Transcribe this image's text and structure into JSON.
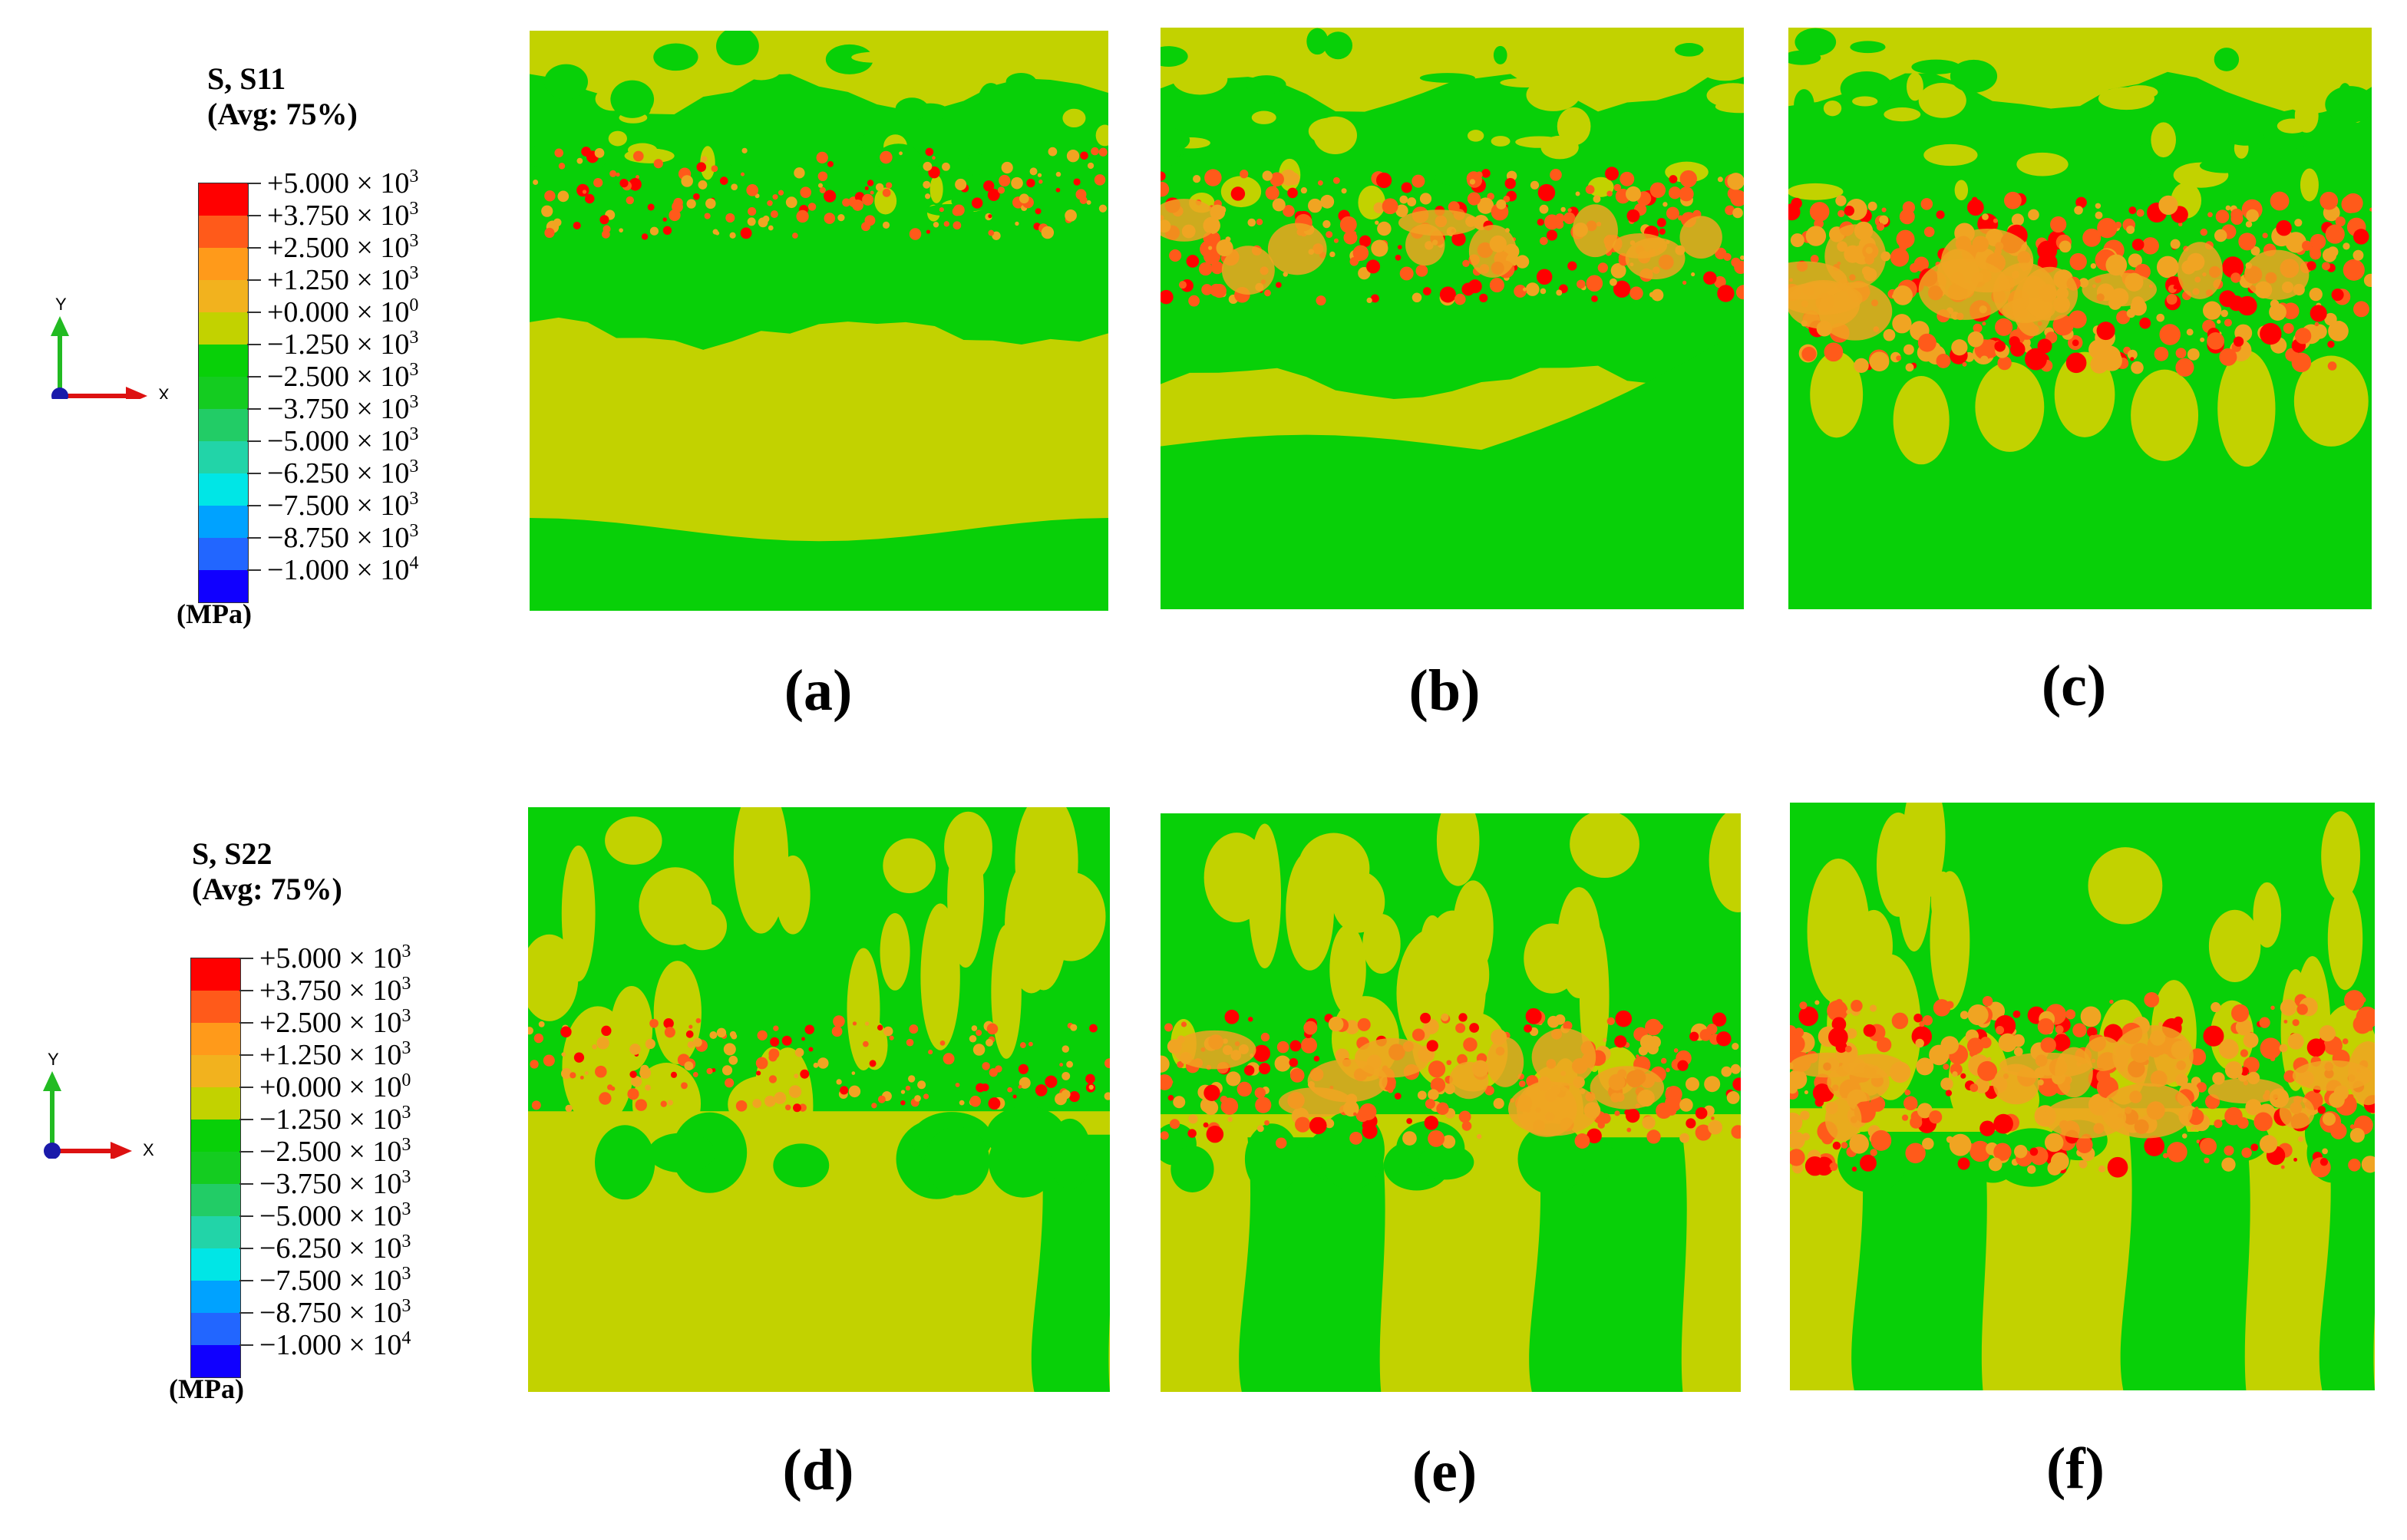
{
  "colors": {
    "red": "#ff0000",
    "orange_red": "#ff5a1a",
    "orange": "#ff9a1a",
    "amber": "#f2b21e",
    "yellow_green": "#c2d200",
    "green": "#08d008",
    "green2": "#14cc20",
    "teal_green": "#22cc66",
    "aqua_green": "#22d4a8",
    "cyan": "#00e6e6",
    "sky": "#00a2ff",
    "blue": "#2266ff",
    "deep_blue": "#1000ff",
    "field_yellow": "#c2d200",
    "field_green": "#08d008",
    "hot_orange": "#ff5a1a",
    "hot_amber": "#f0a422"
  },
  "legend_s11": {
    "title_line1": "S, S11",
    "title_line2": "(Avg: 75%)",
    "unit": "(MPa)",
    "levels": [
      {
        "mantissa": "+5.000 × 10",
        "exp": "3"
      },
      {
        "mantissa": "+3.750 × 10",
        "exp": "3"
      },
      {
        "mantissa": "+2.500 × 10",
        "exp": "3"
      },
      {
        "mantissa": "+1.250 × 10",
        "exp": "3"
      },
      {
        "mantissa": "+0.000 × 10",
        "exp": "0"
      },
      {
        "mantissa": "−1.250 × 10",
        "exp": "3"
      },
      {
        "mantissa": "−2.500 × 10",
        "exp": "3"
      },
      {
        "mantissa": "−3.750 × 10",
        "exp": "3"
      },
      {
        "mantissa": "−5.000 × 10",
        "exp": "3"
      },
      {
        "mantissa": "−6.250 × 10",
        "exp": "3"
      },
      {
        "mantissa": "−7.500 × 10",
        "exp": "3"
      },
      {
        "mantissa": "−8.750 × 10",
        "exp": "3"
      },
      {
        "mantissa": "−1.000 × 10",
        "exp": "4"
      }
    ]
  },
  "legend_s22": {
    "title_line1": "S, S22",
    "title_line2": "(Avg: 75%)",
    "unit": "(MPa)",
    "levels": [
      {
        "mantissa": "+5.000 × 10",
        "exp": "3"
      },
      {
        "mantissa": "+3.750 × 10",
        "exp": "3"
      },
      {
        "mantissa": "+2.500 × 10",
        "exp": "3"
      },
      {
        "mantissa": "+1.250 × 10",
        "exp": "3"
      },
      {
        "mantissa": "+0.000 × 10",
        "exp": "0"
      },
      {
        "mantissa": "−1.250 × 10",
        "exp": "3"
      },
      {
        "mantissa": "−2.500 × 10",
        "exp": "3"
      },
      {
        "mantissa": "−3.750 × 10",
        "exp": "3"
      },
      {
        "mantissa": "−5.000 × 10",
        "exp": "3"
      },
      {
        "mantissa": "−6.250 × 10",
        "exp": "3"
      },
      {
        "mantissa": "−7.500 × 10",
        "exp": "3"
      },
      {
        "mantissa": "−8.750 × 10",
        "exp": "3"
      },
      {
        "mantissa": "−1.000 × 10",
        "exp": "4"
      }
    ]
  },
  "colorbar_order": [
    "red",
    "orange_red",
    "orange",
    "amber",
    "yellow_green",
    "green",
    "green2",
    "teal_green",
    "aqua_green",
    "cyan",
    "sky",
    "blue",
    "deep_blue"
  ],
  "axes": {
    "y_label": "Y",
    "x_label": "X",
    "y_color": "#22bb22",
    "x_color": "#dd1111",
    "origin_color": "#1a1aaa"
  },
  "panels": [
    {
      "id": "a",
      "label": "(a)",
      "intensity": 1
    },
    {
      "id": "b",
      "label": "(b)",
      "intensity": 2
    },
    {
      "id": "c",
      "label": "(c)",
      "intensity": 3
    },
    {
      "id": "d",
      "label": "(d)",
      "intensity": 1
    },
    {
      "id": "e",
      "label": "(e)",
      "intensity": 2
    },
    {
      "id": "f",
      "label": "(f)",
      "intensity": 3
    }
  ]
}
